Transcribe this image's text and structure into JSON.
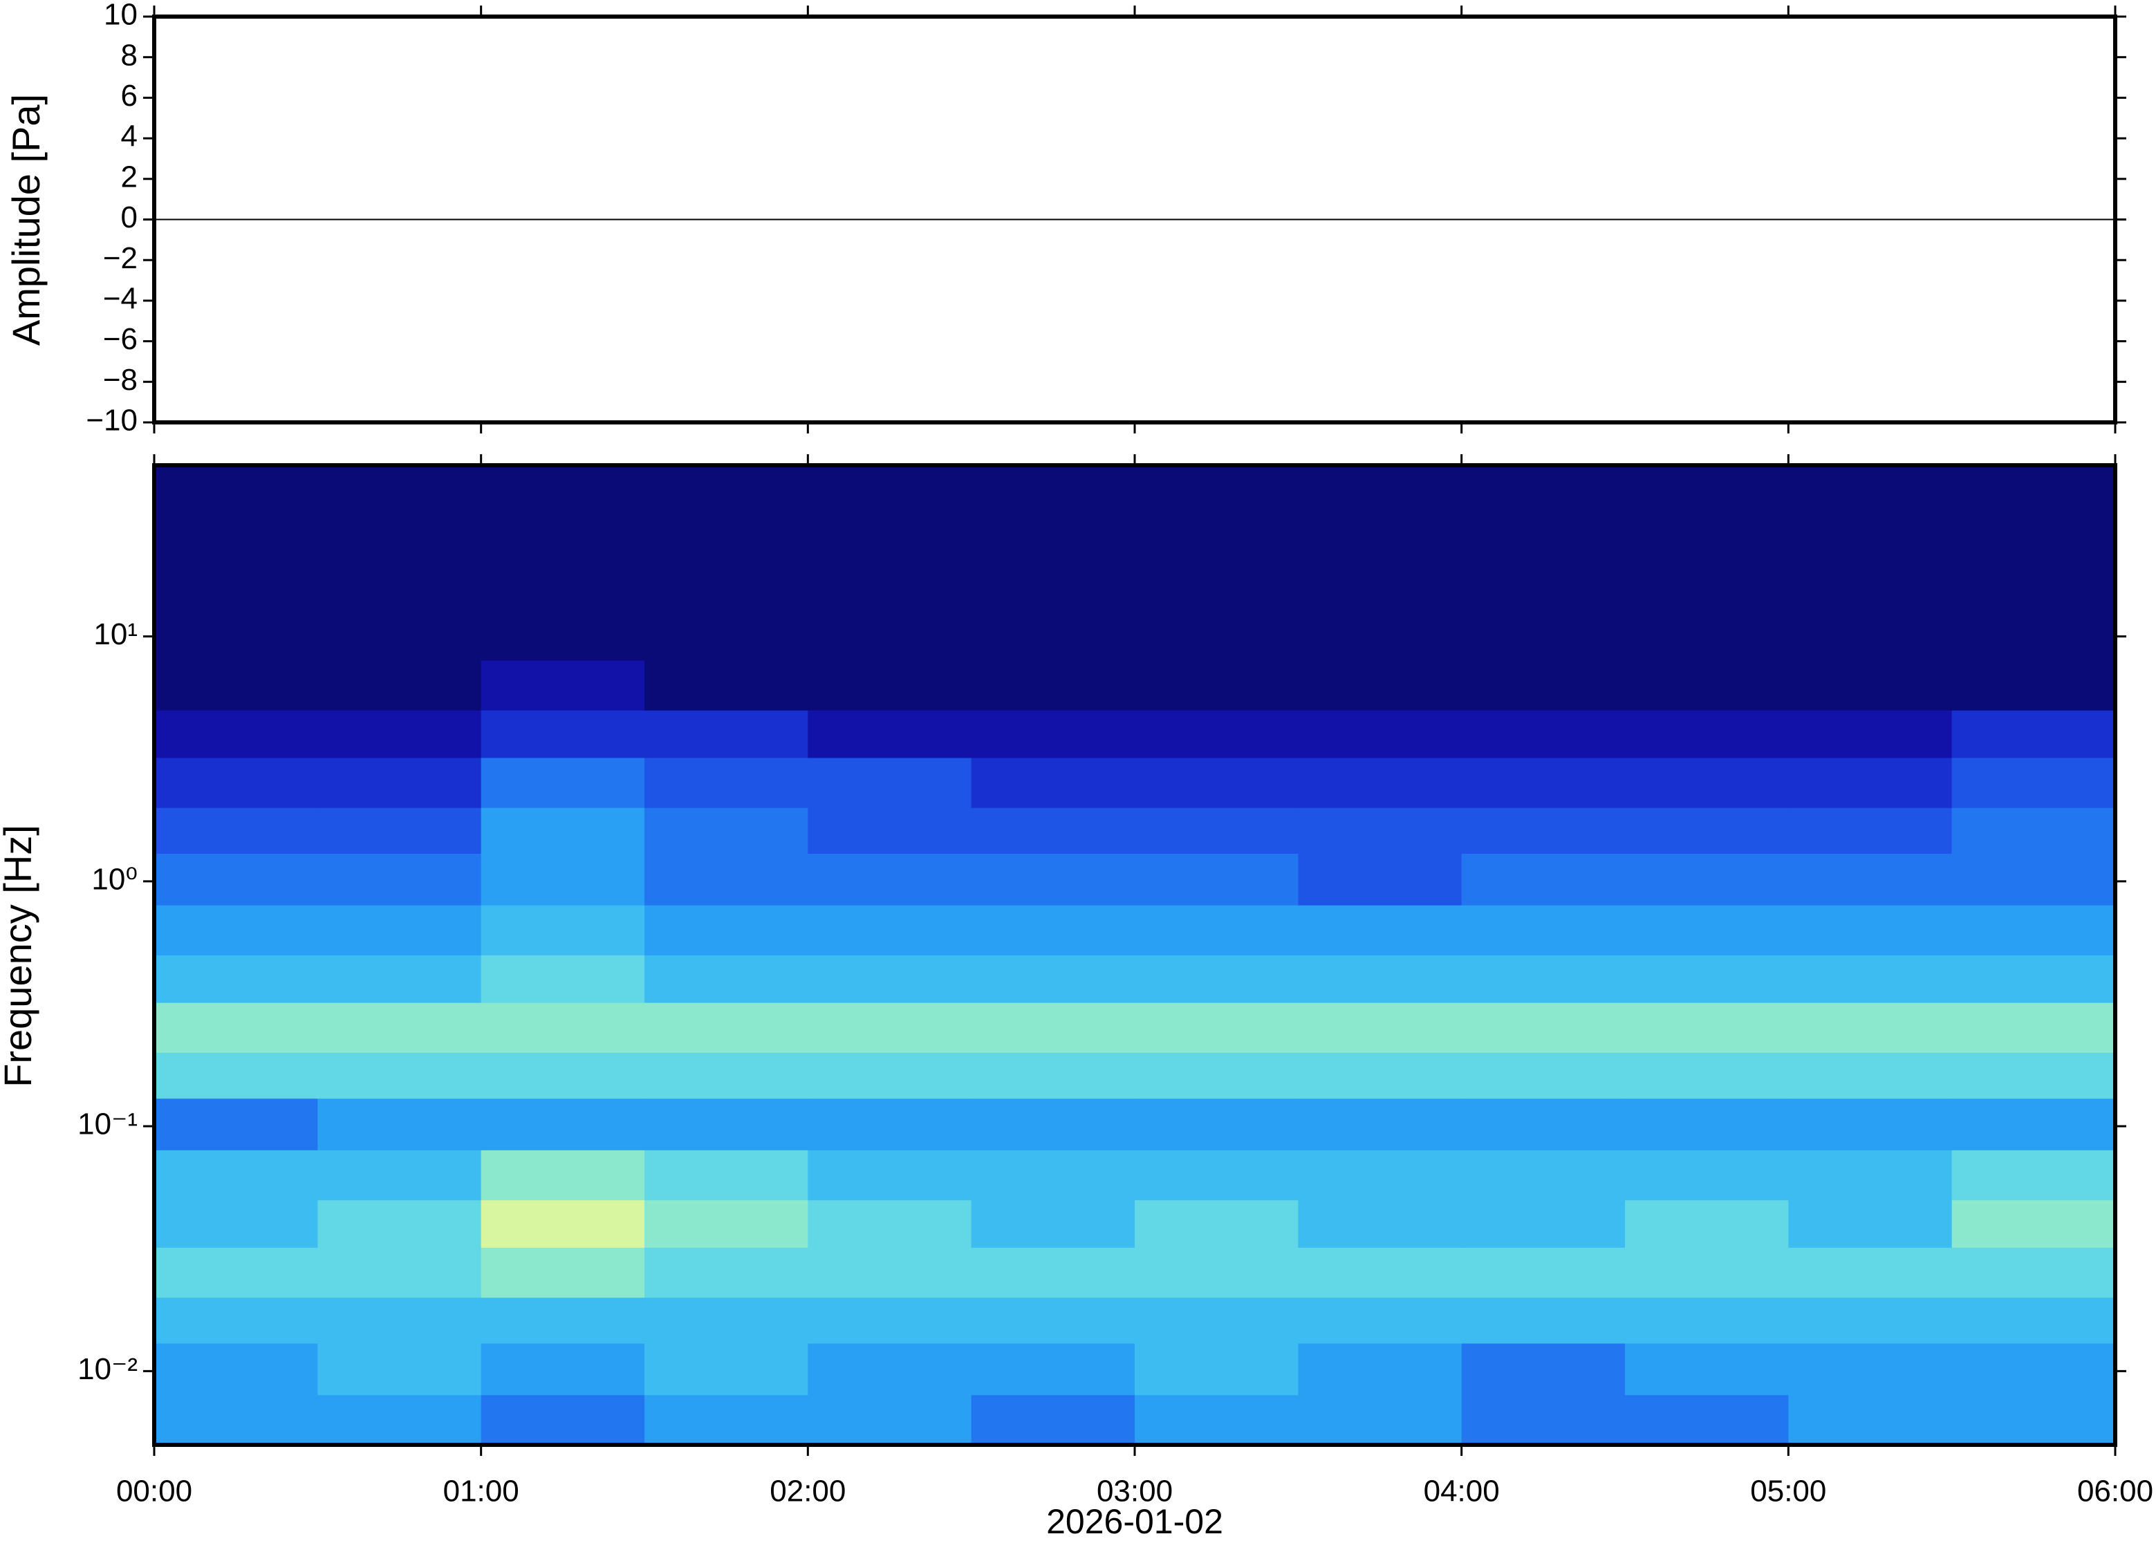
{
  "chart_data": [
    {
      "type": "line",
      "ylabel": "Amplitude [Pa]",
      "xlim": [
        0,
        6
      ],
      "ylim": [
        -10,
        10
      ],
      "yticks": [
        {
          "value": -10,
          "label": "−10"
        },
        {
          "value": -8,
          "label": "−8"
        },
        {
          "value": -6,
          "label": "−6"
        },
        {
          "value": -4,
          "label": "−4"
        },
        {
          "value": -2,
          "label": "−2"
        },
        0,
        2,
        4,
        6,
        8,
        10
      ],
      "x": [
        0,
        6
      ],
      "values": [
        0,
        0
      ],
      "color": "#000000"
    },
    {
      "type": "heatmap",
      "ylabel": "Frequency [Hz]",
      "xlabel": "2026-01-02",
      "xlim": [
        0,
        6
      ],
      "xticks": [
        {
          "value": 0,
          "label": "00:00"
        },
        {
          "value": 1,
          "label": "01:00"
        },
        {
          "value": 2,
          "label": "02:00"
        },
        {
          "value": 3,
          "label": "03:00"
        },
        {
          "value": 4,
          "label": "04:00"
        },
        {
          "value": 5,
          "label": "05:00"
        },
        {
          "value": 6,
          "label": "06:00"
        }
      ],
      "ylim": [
        0.005,
        50
      ],
      "log_y": true,
      "yticks": [
        {
          "value": 0.01,
          "label": "10⁻²"
        },
        {
          "value": 0.1,
          "label": "10⁻¹"
        },
        {
          "value": 1,
          "label": "10⁰"
        },
        {
          "value": 10,
          "label": "10¹"
        }
      ],
      "xedges": [
        0,
        0.5,
        1,
        1.5,
        2,
        2.5,
        3,
        3.5,
        4,
        4.5,
        5,
        5.5,
        6
      ],
      "yedges": [
        0.005,
        0.008,
        0.013,
        0.02,
        0.032,
        0.05,
        0.08,
        0.13,
        0.2,
        0.32,
        0.5,
        0.8,
        1.3,
        2,
        3.2,
        5,
        8,
        50
      ],
      "colors": [
        "#0b0b78",
        "#1212a8",
        "#1830d0",
        "#1f55e6",
        "#2277f0",
        "#2aa0f4",
        "#3cbcf0",
        "#62d8e6",
        "#8ce8cc",
        "#d8f6a0"
      ],
      "z": [
        [
          5,
          5,
          4,
          5,
          5,
          4,
          5,
          5,
          4,
          4,
          5,
          5
        ],
        [
          5,
          6,
          5,
          6,
          5,
          5,
          6,
          5,
          4,
          5,
          5,
          5
        ],
        [
          6,
          6,
          6,
          6,
          6,
          6,
          6,
          6,
          6,
          6,
          6,
          6
        ],
        [
          7,
          7,
          8,
          7,
          7,
          7,
          7,
          7,
          7,
          7,
          7,
          7
        ],
        [
          6,
          7,
          9,
          8,
          7,
          6,
          7,
          6,
          6,
          7,
          6,
          8
        ],
        [
          6,
          6,
          8,
          7,
          6,
          6,
          6,
          6,
          6,
          6,
          6,
          7
        ],
        [
          4,
          5,
          5,
          5,
          5,
          5,
          5,
          5,
          5,
          5,
          5,
          5
        ],
        [
          7,
          7,
          7,
          7,
          7,
          7,
          7,
          7,
          7,
          7,
          7,
          7
        ],
        [
          8,
          8,
          8,
          8,
          8,
          8,
          8,
          8,
          8,
          8,
          8,
          8
        ],
        [
          6,
          6,
          7,
          6,
          6,
          6,
          6,
          6,
          6,
          6,
          6,
          6
        ],
        [
          5,
          5,
          6,
          5,
          5,
          5,
          5,
          5,
          5,
          5,
          5,
          5
        ],
        [
          4,
          4,
          5,
          4,
          4,
          4,
          4,
          3,
          4,
          4,
          4,
          4
        ],
        [
          3,
          3,
          5,
          4,
          3,
          3,
          3,
          3,
          3,
          3,
          3,
          4
        ],
        [
          2,
          2,
          4,
          3,
          3,
          2,
          2,
          2,
          2,
          2,
          2,
          3
        ],
        [
          1,
          1,
          2,
          2,
          1,
          1,
          1,
          1,
          1,
          1,
          1,
          2
        ],
        [
          0,
          0,
          1,
          0,
          0,
          0,
          0,
          0,
          0,
          0,
          0,
          0
        ],
        [
          0,
          0,
          0,
          0,
          0,
          0,
          0,
          0,
          0,
          0,
          0,
          0
        ]
      ]
    }
  ]
}
